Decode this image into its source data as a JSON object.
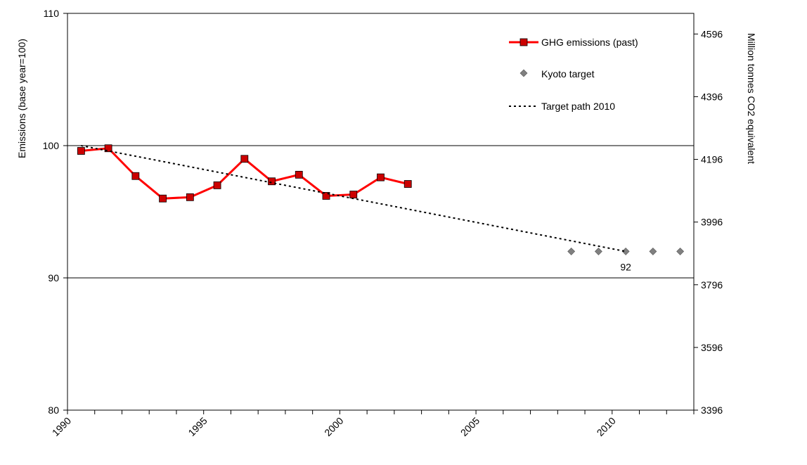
{
  "chart_data": {
    "type": "line",
    "ylabel": "Emissions  (base year=100)",
    "y2label": "Million tonnes CO2 equivalent",
    "x_tick_labels": [
      "1990",
      "1995",
      "2000",
      "2005",
      "2010"
    ],
    "xlim": [
      1990,
      2013
    ],
    "ylim": [
      80,
      110
    ],
    "y_ticks": [
      80,
      90,
      100,
      110
    ],
    "y_tick_labels": [
      "80",
      "90",
      "100",
      "110"
    ],
    "y2_tick_labels": [
      "3396",
      "3596",
      "3796",
      "3996",
      "4196",
      "4396",
      "4596"
    ],
    "y2_ticks_at_y": [
      80,
      84.74,
      89.48,
      94.22,
      98.96,
      103.7,
      108.44
    ],
    "horizontal_lines": [
      90,
      100
    ],
    "series": [
      {
        "name": "GHG emissions (past)",
        "kind": "line-marker",
        "color": "#ff0000",
        "marker_color": "#cc0000",
        "x": [
          1990,
          1991,
          1992,
          1993,
          1994,
          1995,
          1996,
          1997,
          1998,
          1999,
          2000,
          2001,
          2002
        ],
        "values": [
          99.6,
          99.8,
          97.7,
          96.0,
          96.1,
          97.0,
          99.0,
          97.3,
          97.8,
          96.2,
          96.3,
          97.6,
          97.1
        ]
      },
      {
        "name": "Kyoto target",
        "kind": "marker",
        "color": "#808080",
        "x": [
          2008,
          2009,
          2010,
          2011,
          2012
        ],
        "values": [
          92,
          92,
          92,
          92,
          92
        ]
      },
      {
        "name": "Target path 2010",
        "kind": "dotted-line",
        "color": "#000000",
        "x": [
          1990,
          2010
        ],
        "values": [
          100,
          92
        ]
      }
    ],
    "annotations": [
      {
        "text": "92",
        "x": 2010,
        "y": 92
      }
    ],
    "legend_position": "top-right",
    "grid": false
  }
}
